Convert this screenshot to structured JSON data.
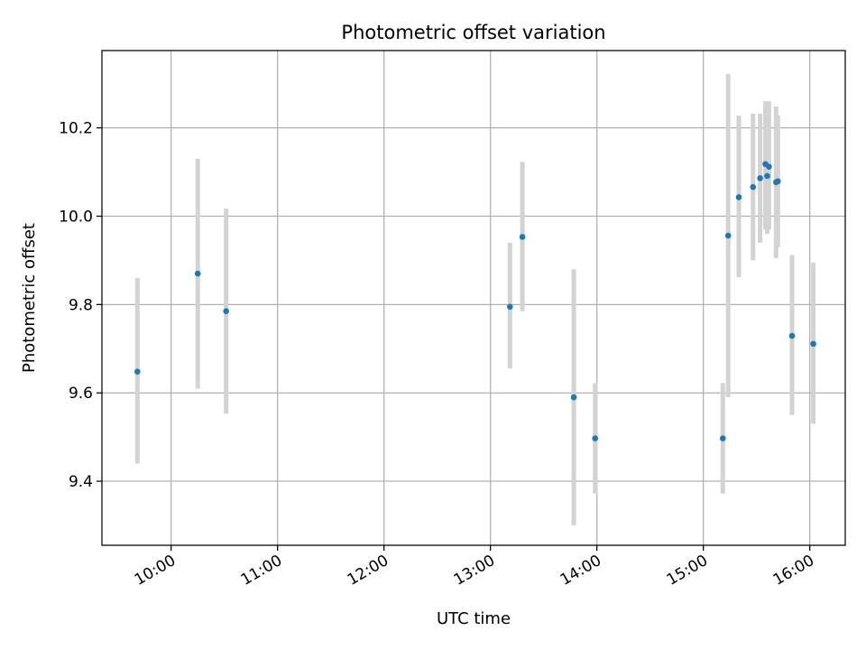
{
  "chart_data": {
    "type": "scatter",
    "title": "Photometric offset variation",
    "xlabel": "UTC time",
    "ylabel": "Photometric offset",
    "x_ticks": [
      "10:00",
      "11:00",
      "12:00",
      "13:00",
      "14:00",
      "15:00",
      "16:00"
    ],
    "y_ticks": [
      "9.4",
      "9.6",
      "9.8",
      "10.0",
      "10.2"
    ],
    "x_range": [
      "09:21",
      "16:20"
    ],
    "y_range": [
      9.255,
      10.375
    ],
    "grid": true,
    "marker_color": "#1f77b4",
    "errorbar_color": "#d3d3d3",
    "series": [
      {
        "points": [
          {
            "time": "09:41",
            "y": 9.648,
            "err_low": 9.44,
            "err_high": 9.86
          },
          {
            "time": "10:15",
            "y": 9.87,
            "err_low": 9.61,
            "err_high": 10.13
          },
          {
            "time": "10:31",
            "y": 9.785,
            "err_low": 9.553,
            "err_high": 10.017
          },
          {
            "time": "13:11",
            "y": 9.795,
            "err_low": 9.655,
            "err_high": 9.94
          },
          {
            "time": "13:18",
            "y": 9.953,
            "err_low": 9.785,
            "err_high": 10.123
          },
          {
            "time": "13:47",
            "y": 9.59,
            "err_low": 9.3,
            "err_high": 9.88
          },
          {
            "time": "13:59",
            "y": 9.497,
            "err_low": 9.372,
            "err_high": 9.622
          },
          {
            "time": "15:11",
            "y": 9.497,
            "err_low": 9.372,
            "err_high": 9.622
          },
          {
            "time": "15:14",
            "y": 9.956,
            "err_low": 9.59,
            "err_high": 10.322
          },
          {
            "time": "15:20",
            "y": 10.043,
            "err_low": 9.862,
            "err_high": 10.228
          },
          {
            "time": "15:28",
            "y": 10.066,
            "err_low": 9.9,
            "err_high": 10.232
          },
          {
            "time": "15:32",
            "y": 10.086,
            "err_low": 9.94,
            "err_high": 10.232
          },
          {
            "time": "15:35",
            "y": 10.118,
            "err_low": 9.97,
            "err_high": 10.26
          },
          {
            "time": "15:36",
            "y": 10.091,
            "err_low": 9.96,
            "err_high": 10.26
          },
          {
            "time": "15:37",
            "y": 10.112,
            "err_low": 9.97,
            "err_high": 10.26
          },
          {
            "time": "15:41",
            "y": 10.077,
            "err_low": 9.905,
            "err_high": 10.248
          },
          {
            "time": "15:42",
            "y": 10.079,
            "err_low": 9.93,
            "err_high": 10.228
          },
          {
            "time": "15:50",
            "y": 9.729,
            "err_low": 9.55,
            "err_high": 9.912
          },
          {
            "time": "16:02",
            "y": 9.711,
            "err_low": 9.53,
            "err_high": 9.895
          }
        ]
      }
    ]
  }
}
